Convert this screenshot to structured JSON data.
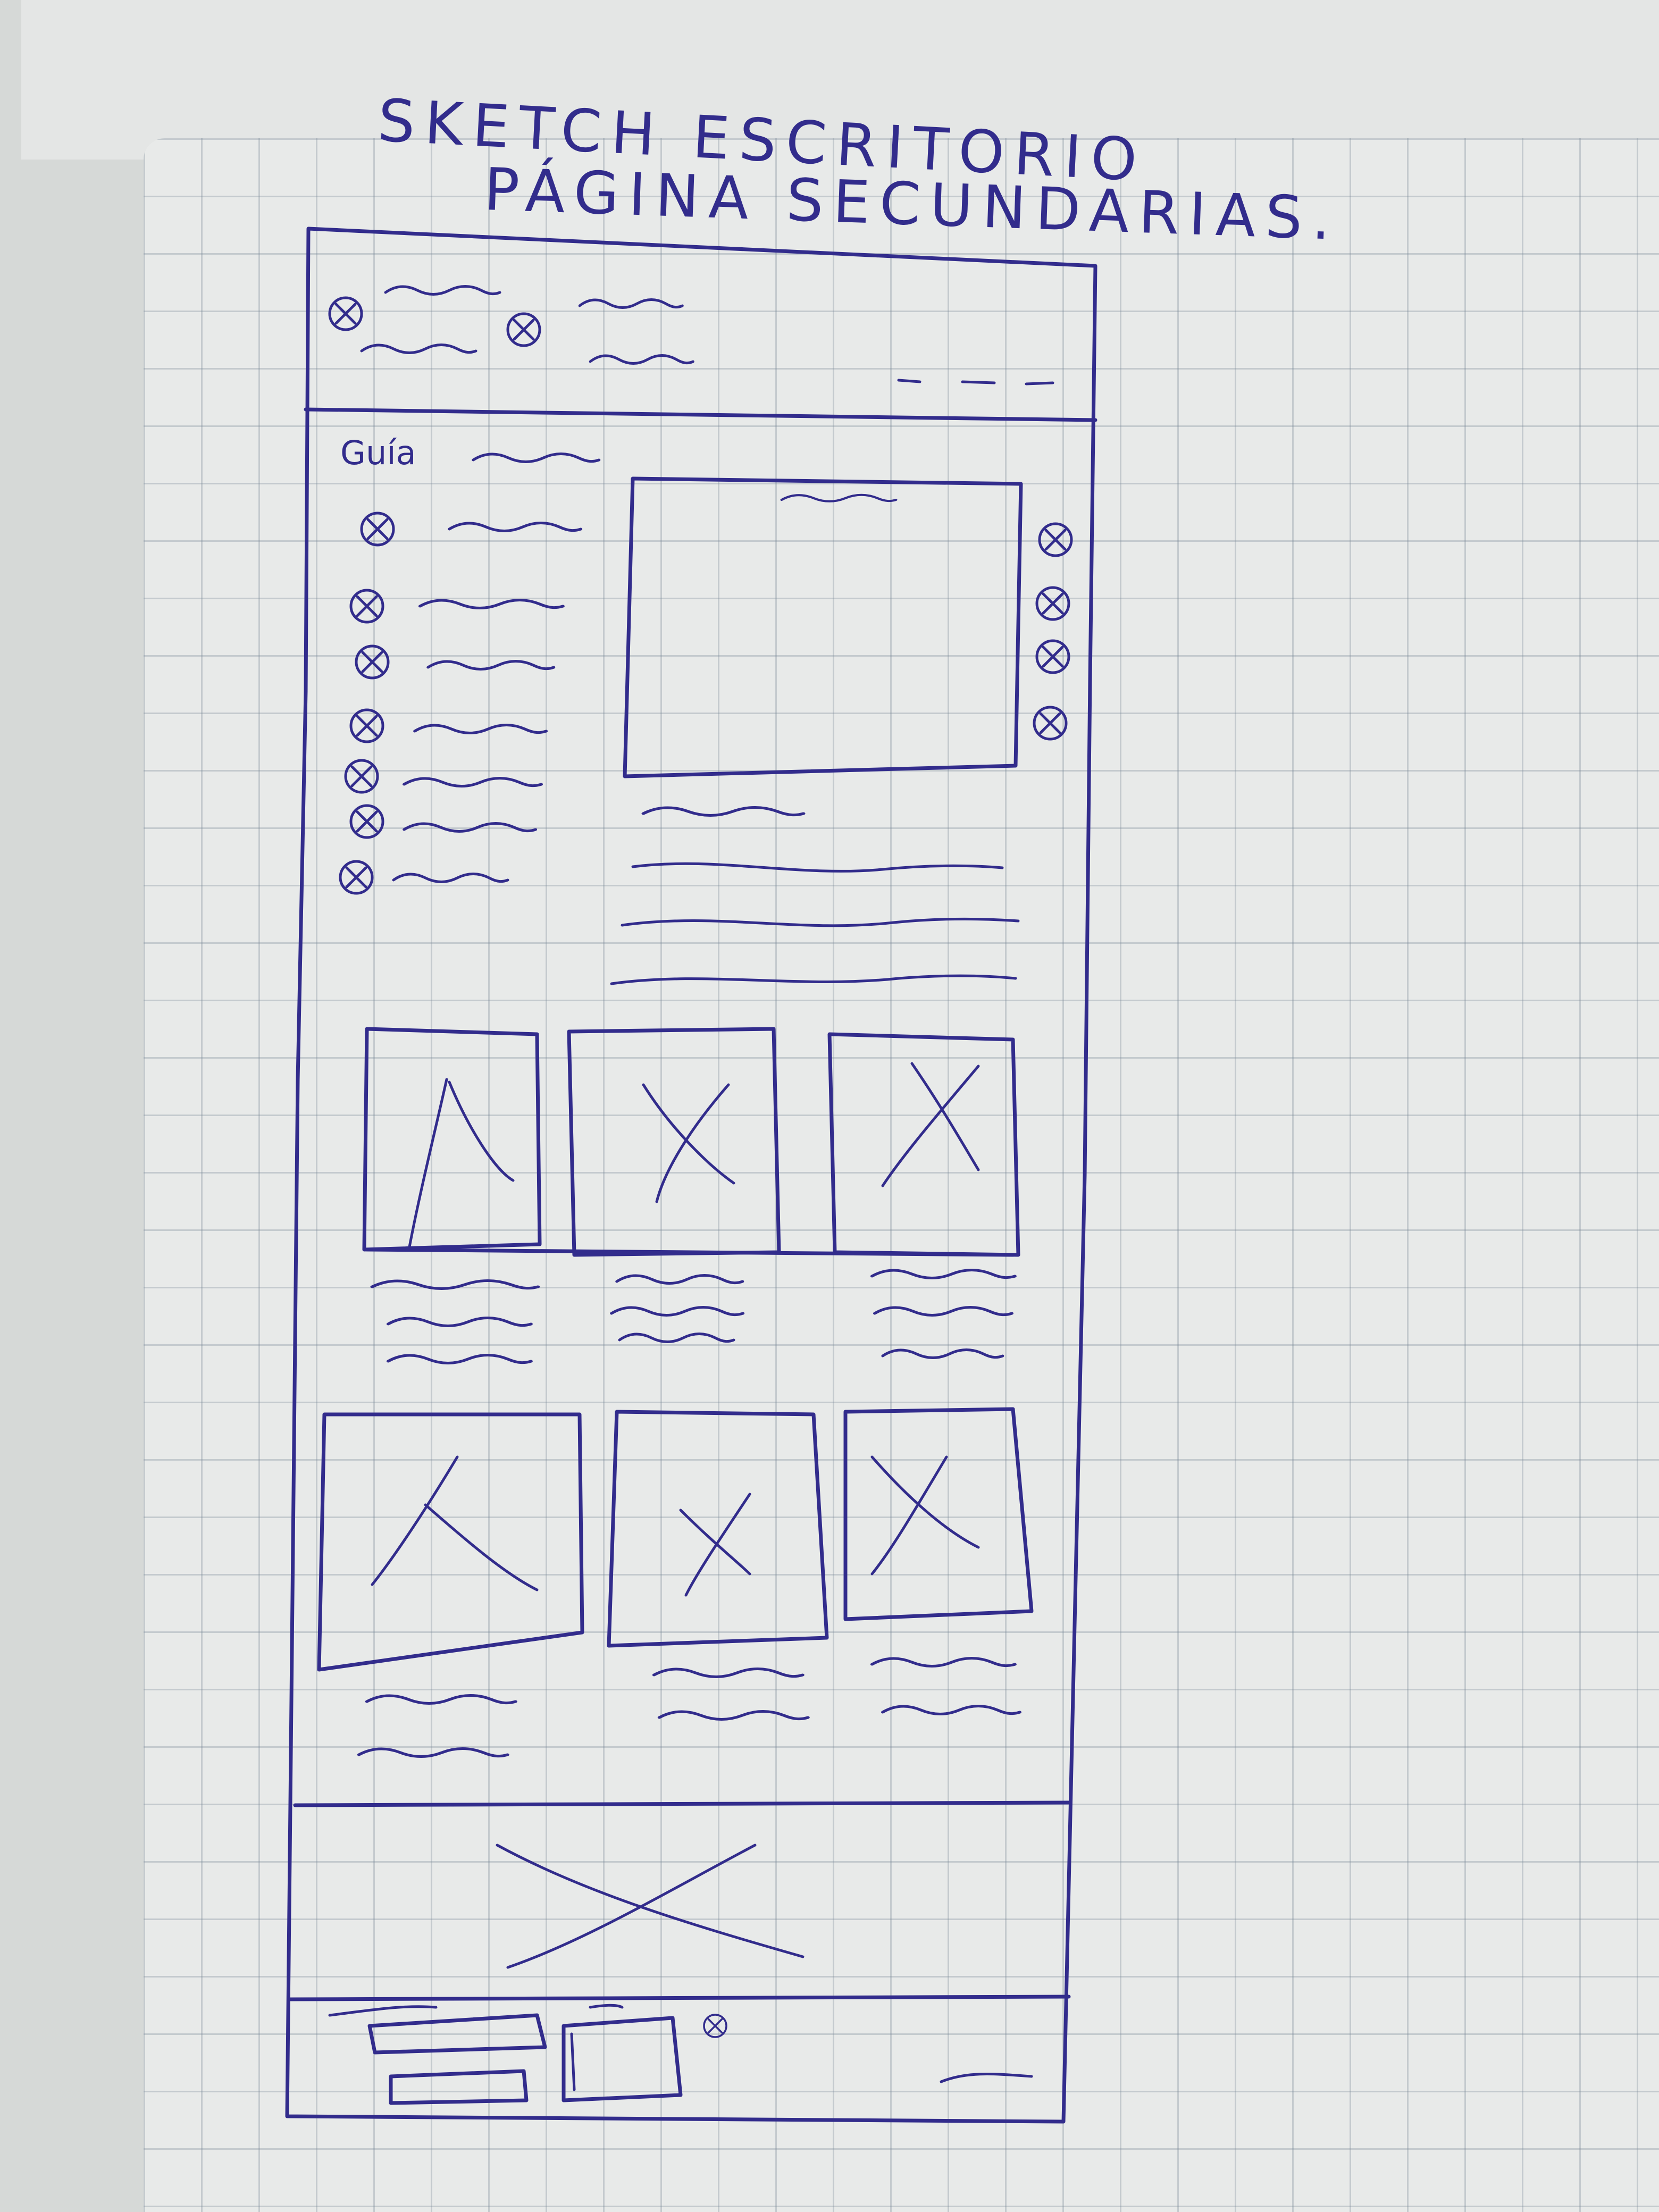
{
  "sketch": {
    "title_line_1": "SKETCH ESCRITORIO",
    "title_line_2": "PÁGINA SECUNDARIAS.",
    "sidebar_heading": "Guía"
  }
}
